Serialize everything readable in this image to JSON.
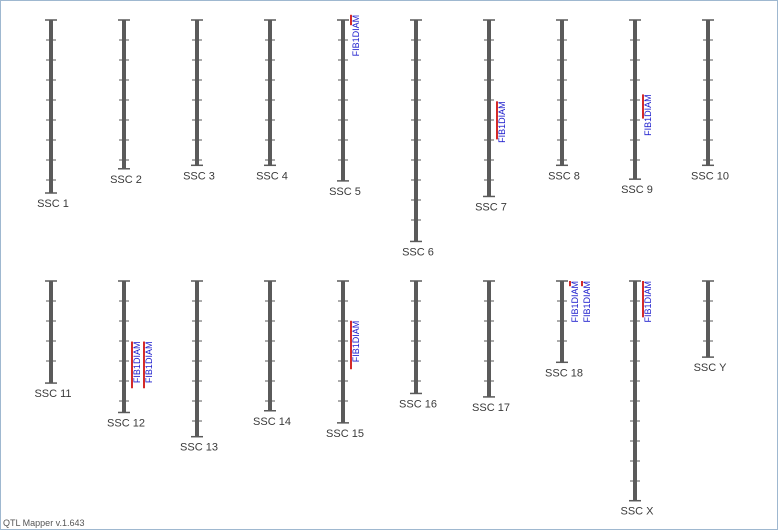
{
  "app": {
    "version_label": "QTL Mapper v.1.643"
  },
  "colors": {
    "chromosome": "#5a5a5a",
    "tick": "#5a5a5a",
    "qtl_bar": "#d42a2a",
    "qtl_text": "#1a1acc",
    "label_text": "#3a3a3a"
  },
  "chromosomes": [
    {
      "name": "SSC 1",
      "length": 1.0,
      "qtls": []
    },
    {
      "name": "SSC 2",
      "length": 0.86,
      "qtls": []
    },
    {
      "name": "SSC 3",
      "length": 0.84,
      "qtls": []
    },
    {
      "name": "SSC 4",
      "length": 0.84,
      "qtls": []
    },
    {
      "name": "SSC 5",
      "length": 0.93,
      "qtls": [
        {
          "label": "FIB1DIAM",
          "start": -0.03,
          "end": 0.03
        }
      ]
    },
    {
      "name": "SSC 6",
      "length": 1.28,
      "qtls": []
    },
    {
      "name": "SSC 7",
      "length": 1.02,
      "qtls": [
        {
          "label": "FIB1DIAM",
          "start": 0.47,
          "end": 0.69
        }
      ]
    },
    {
      "name": "SSC 8",
      "length": 0.84,
      "qtls": []
    },
    {
      "name": "SSC 9",
      "length": 0.92,
      "qtls": [
        {
          "label": "FIB1DIAM",
          "start": 0.43,
          "end": 0.57
        }
      ]
    },
    {
      "name": "SSC 10",
      "length": 0.84,
      "qtls": []
    },
    {
      "name": "SSC 11",
      "length": 0.59,
      "qtls": []
    },
    {
      "name": "SSC 12",
      "length": 0.76,
      "qtls": [
        {
          "label": "FIB1DIAM",
          "start": 0.35,
          "end": 0.62
        },
        {
          "label": "FIB1DIAM",
          "start": 0.35,
          "end": 0.62
        }
      ]
    },
    {
      "name": "SSC 13",
      "length": 0.9,
      "qtls": []
    },
    {
      "name": "SSC 14",
      "length": 0.75,
      "qtls": []
    },
    {
      "name": "SSC 15",
      "length": 0.82,
      "qtls": [
        {
          "label": "FIB1DIAM",
          "start": 0.23,
          "end": 0.51
        }
      ]
    },
    {
      "name": "SSC 16",
      "length": 0.65,
      "qtls": []
    },
    {
      "name": "SSC 17",
      "length": 0.67,
      "qtls": []
    },
    {
      "name": "SSC 18",
      "length": 0.47,
      "qtls": [
        {
          "label": "FIB1DIAM",
          "start": 0.0,
          "end": 0.03
        },
        {
          "label": "FIB1DIAM",
          "start": 0.0,
          "end": 0.03
        }
      ]
    },
    {
      "name": "SSC X",
      "length": 1.27,
      "qtls": [
        {
          "label": "FIB1DIAM",
          "start": 0.0,
          "end": 0.21
        }
      ]
    },
    {
      "name": "SSC Y",
      "length": 0.44,
      "qtls": []
    }
  ]
}
